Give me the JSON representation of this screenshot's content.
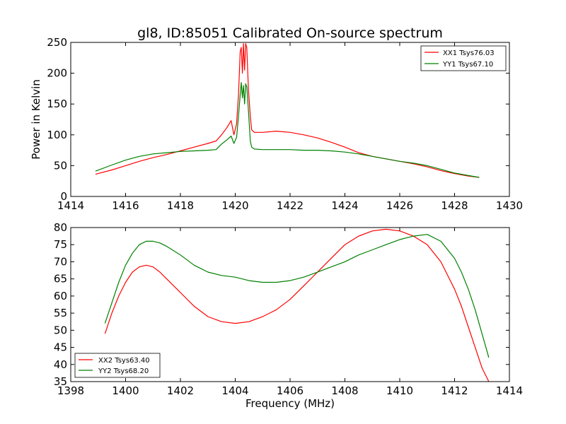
{
  "figure": {
    "title": "gl8, ID:85051 Calibrated On-source spectrum"
  },
  "colors": {
    "xx": "#ff0000",
    "yy": "#008000",
    "axes": "#000000",
    "background": "#ffffff"
  },
  "chart_data": [
    {
      "type": "line",
      "title": "gl8, ID:85051 Calibrated On-source spectrum",
      "xlabel": "",
      "ylabel": "Power in Kelvin",
      "xlim": [
        1414,
        1430
      ],
      "ylim": [
        0,
        250
      ],
      "xticks": [
        1414,
        1416,
        1418,
        1420,
        1422,
        1424,
        1426,
        1428,
        1430
      ],
      "yticks": [
        0,
        50,
        100,
        150,
        200,
        250
      ],
      "xtick_labels": [
        "1414",
        "1416",
        "1418",
        "1420",
        "1422",
        "1424",
        "1426",
        "1428",
        "1430"
      ],
      "ytick_labels": [
        "0",
        "50",
        "100",
        "150",
        "200",
        "250"
      ],
      "legend": "top-right",
      "grid": false,
      "series": [
        {
          "name": "XX1 Tsys76.03",
          "color": "#ff0000",
          "x": [
            1414.9,
            1415.5,
            1416.0,
            1416.5,
            1417.0,
            1417.5,
            1418.0,
            1418.5,
            1419.0,
            1419.3,
            1419.5,
            1419.7,
            1419.85,
            1419.95,
            1420.05,
            1420.12,
            1420.18,
            1420.22,
            1420.26,
            1420.3,
            1420.34,
            1420.38,
            1420.42,
            1420.48,
            1420.55,
            1420.6,
            1420.7,
            1421.0,
            1421.5,
            1422.0,
            1422.5,
            1423.0,
            1423.5,
            1424.0,
            1424.5,
            1425.0,
            1425.5,
            1426.0,
            1426.5,
            1427.0,
            1427.5,
            1428.0,
            1428.5,
            1428.9
          ],
          "values": [
            36,
            43,
            50,
            57,
            63,
            68,
            74,
            80,
            86,
            90,
            100,
            112,
            123,
            100,
            118,
            165,
            235,
            242,
            200,
            248,
            205,
            248,
            242,
            175,
            130,
            108,
            104,
            104,
            106,
            104,
            100,
            95,
            88,
            80,
            71,
            65,
            61,
            57,
            53,
            48,
            42,
            37,
            33,
            31
          ]
        },
        {
          "name": "YY1 Tsys67.10",
          "color": "#008000",
          "x": [
            1414.9,
            1415.5,
            1416.0,
            1416.5,
            1417.0,
            1417.5,
            1418.0,
            1418.5,
            1419.0,
            1419.3,
            1419.5,
            1419.7,
            1419.85,
            1419.95,
            1420.05,
            1420.12,
            1420.18,
            1420.22,
            1420.26,
            1420.3,
            1420.34,
            1420.38,
            1420.42,
            1420.48,
            1420.55,
            1420.6,
            1420.7,
            1421.0,
            1421.5,
            1422.0,
            1422.5,
            1423.0,
            1423.5,
            1424.0,
            1424.5,
            1425.0,
            1425.5,
            1426.0,
            1426.5,
            1427.0,
            1427.5,
            1428.0,
            1428.5,
            1428.9
          ],
          "values": [
            41,
            51,
            59,
            65,
            69,
            71,
            73,
            74,
            75,
            76,
            85,
            92,
            98,
            86,
            96,
            130,
            165,
            185,
            160,
            180,
            150,
            183,
            178,
            140,
            90,
            80,
            77,
            76,
            76,
            76,
            75,
            75,
            74,
            72,
            69,
            65,
            61,
            57,
            54,
            50,
            44,
            38,
            34,
            31
          ]
        }
      ]
    },
    {
      "type": "line",
      "title": "",
      "xlabel": "Frequency (MHz)",
      "ylabel": "",
      "xlim": [
        1398,
        1414
      ],
      "ylim": [
        35,
        80
      ],
      "xticks": [
        1398,
        1400,
        1402,
        1404,
        1406,
        1408,
        1410,
        1412,
        1414
      ],
      "yticks": [
        35,
        40,
        45,
        50,
        55,
        60,
        65,
        70,
        75,
        80
      ],
      "xtick_labels": [
        "1398",
        "1400",
        "1402",
        "1404",
        "1406",
        "1408",
        "1410",
        "1412",
        "1414"
      ],
      "ytick_labels": [
        "35",
        "40",
        "45",
        "50",
        "55",
        "60",
        "65",
        "70",
        "75",
        "80"
      ],
      "legend": "bottom-left",
      "grid": false,
      "series": [
        {
          "name": "XX2 Tsys63.40",
          "color": "#ff0000",
          "x": [
            1399.25,
            1399.5,
            1399.75,
            1400.0,
            1400.25,
            1400.5,
            1400.75,
            1401.0,
            1401.25,
            1401.5,
            1402.0,
            1402.5,
            1403.0,
            1403.5,
            1404.0,
            1404.5,
            1405.0,
            1405.5,
            1406.0,
            1406.5,
            1407.0,
            1407.5,
            1408.0,
            1408.5,
            1409.0,
            1409.5,
            1410.0,
            1410.5,
            1411.0,
            1411.5,
            1412.0,
            1412.25,
            1412.5,
            1412.75,
            1413.0,
            1413.25
          ],
          "values": [
            49,
            55,
            60,
            64,
            67,
            68.5,
            69,
            68.5,
            67,
            65,
            61,
            57,
            54,
            52.5,
            52,
            52.5,
            54,
            56,
            59,
            63,
            67,
            71,
            75,
            77.5,
            79,
            79.5,
            79,
            77.5,
            75,
            70,
            62,
            57,
            51,
            45,
            39,
            35
          ]
        },
        {
          "name": "YY2 Tsys68.20",
          "color": "#008000",
          "x": [
            1399.25,
            1399.5,
            1399.75,
            1400.0,
            1400.25,
            1400.5,
            1400.75,
            1401.0,
            1401.25,
            1401.5,
            1402.0,
            1402.5,
            1403.0,
            1403.5,
            1404.0,
            1404.5,
            1405.0,
            1405.5,
            1406.0,
            1406.5,
            1407.0,
            1407.5,
            1408.0,
            1408.5,
            1409.0,
            1409.5,
            1410.0,
            1410.5,
            1411.0,
            1411.5,
            1412.0,
            1412.25,
            1412.5,
            1412.75,
            1413.0,
            1413.25
          ],
          "values": [
            52,
            58,
            64,
            69,
            72.5,
            75,
            76,
            76,
            75.5,
            74.5,
            72,
            69,
            67,
            66,
            65.5,
            64.5,
            64,
            64,
            64.5,
            65.5,
            67,
            68.5,
            70,
            72,
            73.5,
            75,
            76.5,
            77.5,
            78,
            76,
            71,
            67,
            62,
            56,
            49,
            42
          ]
        }
      ]
    }
  ]
}
